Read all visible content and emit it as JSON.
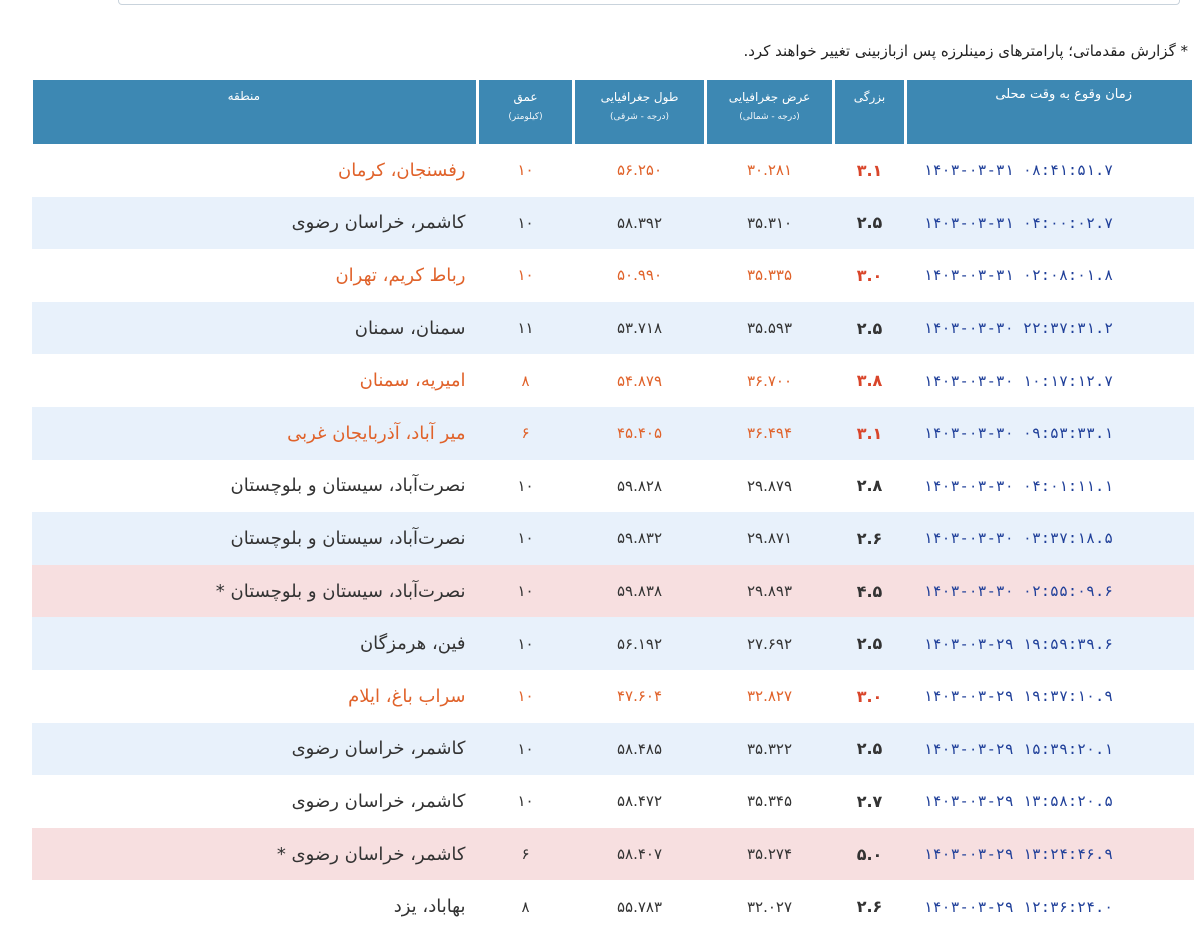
{
  "note": "* گزارش مقدماتی؛ پارامترهای زمینلرزه پس ازبازبینی تغییر خواهند کرد.",
  "headers": {
    "time": "زمان وقوع به وقت محلی",
    "magnitude": "بزرگی",
    "latitude": "عرض جغرافیایی",
    "latitude_sub": "(درجه - شمالی)",
    "longitude": "طول جغرافیایی",
    "longitude_sub": "(درجه - شرقی)",
    "depth": "عمق",
    "depth_sub": "(کیلومتر)",
    "region": "منطقه"
  },
  "colors": {
    "header_bg": "#3d88b3",
    "row_alt_bg": "#e8f1fb",
    "row_highlight_bg": "#f7dfe0",
    "time_text": "#1f3f99",
    "orange_text": "#e0622a"
  },
  "rows": [
    {
      "time": "۱۴۰۳-۰۳-۳۱ ۰۸:۴۱:۵۱.۷",
      "magnitude": "۳.۱",
      "latitude": "۳۰.۲۸۱",
      "longitude": "۵۶.۲۵۰",
      "depth": "۱۰",
      "region": "رفسنجان، کرمان",
      "style": "orange"
    },
    {
      "time": "۱۴۰۳-۰۳-۳۱ ۰۴:۰۰:۰۲.۷",
      "magnitude": "۲.۵",
      "latitude": "۳۵.۳۱۰",
      "longitude": "۵۸.۳۹۲",
      "depth": "۱۰",
      "region": "کاشمر، خراسان رضوی",
      "style": "alt"
    },
    {
      "time": "۱۴۰۳-۰۳-۳۱ ۰۲:۰۸:۰۱.۸",
      "magnitude": "۳.۰",
      "latitude": "۳۵.۳۳۵",
      "longitude": "۵۰.۹۹۰",
      "depth": "۱۰",
      "region": "رباط کریم، تهران",
      "style": "orange"
    },
    {
      "time": "۱۴۰۳-۰۳-۳۰ ۲۲:۳۷:۳۱.۲",
      "magnitude": "۲.۵",
      "latitude": "۳۵.۵۹۳",
      "longitude": "۵۳.۷۱۸",
      "depth": "۱۱",
      "region": "سمنان، سمنان",
      "style": "alt"
    },
    {
      "time": "۱۴۰۳-۰۳-۳۰ ۱۰:۱۷:۱۲.۷",
      "magnitude": "۳.۸",
      "latitude": "۳۶.۷۰۰",
      "longitude": "۵۴.۸۷۹",
      "depth": "۸",
      "region": "امیریه، سمنان",
      "style": "orange"
    },
    {
      "time": "۱۴۰۳-۰۳-۳۰ ۰۹:۵۳:۳۳.۱",
      "magnitude": "۳.۱",
      "latitude": "۳۶.۴۹۴",
      "longitude": "۴۵.۴۰۵",
      "depth": "۶",
      "region": "میر آباد، آذربایجان غربی",
      "style": "orange-alt"
    },
    {
      "time": "۱۴۰۳-۰۳-۳۰ ۰۴:۰۱:۱۱.۱",
      "magnitude": "۲.۸",
      "latitude": "۲۹.۸۷۹",
      "longitude": "۵۹.۸۲۸",
      "depth": "۱۰",
      "region": "نصرت‌آباد، سیستان و بلوچستان",
      "style": "plain"
    },
    {
      "time": "۱۴۰۳-۰۳-۳۰ ۰۳:۳۷:۱۸.۵",
      "magnitude": "۲.۶",
      "latitude": "۲۹.۸۷۱",
      "longitude": "۵۹.۸۳۲",
      "depth": "۱۰",
      "region": "نصرت‌آباد، سیستان و بلوچستان",
      "style": "alt"
    },
    {
      "time": "۱۴۰۳-۰۳-۳۰ ۰۲:۵۵:۰۹.۶",
      "magnitude": "۴.۵",
      "latitude": "۲۹.۸۹۳",
      "longitude": "۵۹.۸۳۸",
      "depth": "۱۰",
      "region": "نصرت‌آباد، سیستان و بلوچستان *",
      "style": "hl"
    },
    {
      "time": "۱۴۰۳-۰۳-۲۹ ۱۹:۵۹:۳۹.۶",
      "magnitude": "۲.۵",
      "latitude": "۲۷.۶۹۲",
      "longitude": "۵۶.۱۹۲",
      "depth": "۱۰",
      "region": "فین، هرمزگان",
      "style": "alt"
    },
    {
      "time": "۱۴۰۳-۰۳-۲۹ ۱۹:۳۷:۱۰.۹",
      "magnitude": "۳.۰",
      "latitude": "۳۲.۸۲۷",
      "longitude": "۴۷.۶۰۴",
      "depth": "۱۰",
      "region": "سراب باغ، ایلام",
      "style": "orange"
    },
    {
      "time": "۱۴۰۳-۰۳-۲۹ ۱۵:۳۹:۲۰.۱",
      "magnitude": "۲.۵",
      "latitude": "۳۵.۳۲۲",
      "longitude": "۵۸.۴۸۵",
      "depth": "۱۰",
      "region": "کاشمر، خراسان رضوی",
      "style": "alt"
    },
    {
      "time": "۱۴۰۳-۰۳-۲۹ ۱۳:۵۸:۲۰.۵",
      "magnitude": "۲.۷",
      "latitude": "۳۵.۳۴۵",
      "longitude": "۵۸.۴۷۲",
      "depth": "۱۰",
      "region": "کاشمر، خراسان رضوی",
      "style": "plain"
    },
    {
      "time": "۱۴۰۳-۰۳-۲۹ ۱۳:۲۴:۴۶.۹",
      "magnitude": "۵.۰",
      "latitude": "۳۵.۲۷۴",
      "longitude": "۵۸.۴۰۷",
      "depth": "۶",
      "region": "کاشمر، خراسان رضوی *",
      "style": "hl"
    },
    {
      "time": "۱۴۰۳-۰۳-۲۹ ۱۲:۳۶:۲۴.۰",
      "magnitude": "۲.۶",
      "latitude": "۳۲.۰۲۷",
      "longitude": "۵۵.۷۸۳",
      "depth": "۸",
      "region": "بهاباد، یزد",
      "style": "plain"
    }
  ]
}
